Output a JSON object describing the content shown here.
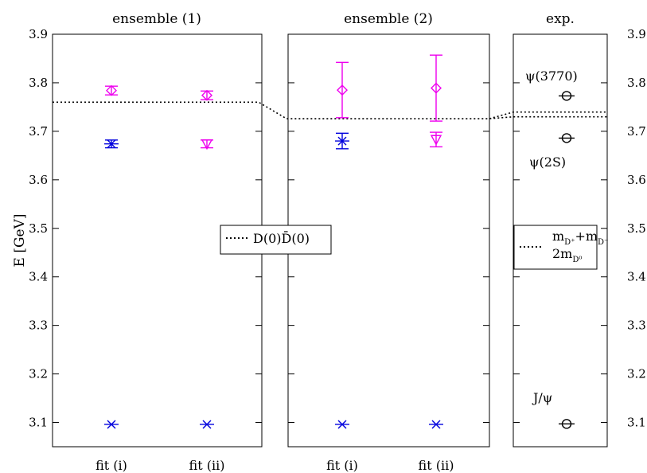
{
  "chart_data": {
    "type": "scatter",
    "ylabel": "E [GeV]",
    "ylim": [
      3.05,
      3.9
    ],
    "y_ticks": [
      "3.1",
      "3.2",
      "3.3",
      "3.4",
      "3.5",
      "3.6",
      "3.7",
      "3.8",
      "3.9"
    ],
    "panels": [
      {
        "title": "ensemble (1)",
        "categories": [
          "fit (i)",
          "fit (ii)"
        ],
        "points": [
          {
            "x": "fit (i)",
            "y": 3.096,
            "err": 0.0,
            "marker": "cross",
            "color": "#0000dd"
          },
          {
            "x": "fit (i)",
            "y": 3.674,
            "err": 0.008,
            "marker": "cross",
            "color": "#0000dd"
          },
          {
            "x": "fit (i)",
            "y": 3.784,
            "err": 0.009,
            "marker": "diamond",
            "color": "#ee00ee"
          },
          {
            "x": "fit (ii)",
            "y": 3.096,
            "err": 0.0,
            "marker": "cross",
            "color": "#0000dd"
          },
          {
            "x": "fit (ii)",
            "y": 3.674,
            "err": 0.008,
            "marker": "triangle-down",
            "color": "#ee00ee"
          },
          {
            "x": "fit (ii)",
            "y": 3.774,
            "err": 0.009,
            "marker": "diamond",
            "color": "#ee00ee"
          }
        ],
        "threshold": 3.76
      },
      {
        "title": "ensemble (2)",
        "categories": [
          "fit (i)",
          "fit (ii)"
        ],
        "points": [
          {
            "x": "fit (i)",
            "y": 3.096,
            "err": 0.0,
            "marker": "cross",
            "color": "#0000dd"
          },
          {
            "x": "fit (i)",
            "y": 3.68,
            "err": 0.016,
            "marker": "cross",
            "color": "#0000dd"
          },
          {
            "x": "fit (i)",
            "y": 3.785,
            "err": 0.057,
            "marker": "diamond",
            "color": "#ee00ee"
          },
          {
            "x": "fit (ii)",
            "y": 3.096,
            "err": 0.0,
            "marker": "cross",
            "color": "#0000dd"
          },
          {
            "x": "fit (ii)",
            "y": 3.683,
            "err": 0.015,
            "marker": "triangle-down",
            "color": "#ee00ee"
          },
          {
            "x": "fit (ii)",
            "y": 3.789,
            "err": 0.068,
            "marker": "diamond",
            "color": "#ee00ee"
          }
        ],
        "threshold": 3.726
      },
      {
        "title": "exp.",
        "categories": [],
        "points": [
          {
            "y": 3.097,
            "label": "J/ψ",
            "marker": "circle",
            "color": "#000000"
          },
          {
            "y": 3.686,
            "label": "ψ(2S)",
            "marker": "circle",
            "color": "#000000"
          },
          {
            "y": 3.773,
            "label": "ψ(3770)",
            "marker": "circle",
            "color": "#000000"
          }
        ],
        "thresholds": [
          3.7298,
          3.7396
        ]
      }
    ],
    "legends": [
      {
        "label": "D(0)D̄(0)",
        "style": "dotted",
        "placement": "panel-1-middle-right"
      },
      {
        "label_line1": "m",
        "sub1": "D⁺",
        "plus": "+m",
        "sub2": "D⁻",
        "label_line2": "2m",
        "sub3": "D⁰",
        "style": "dotted",
        "placement": "panel-3-middle"
      }
    ]
  }
}
